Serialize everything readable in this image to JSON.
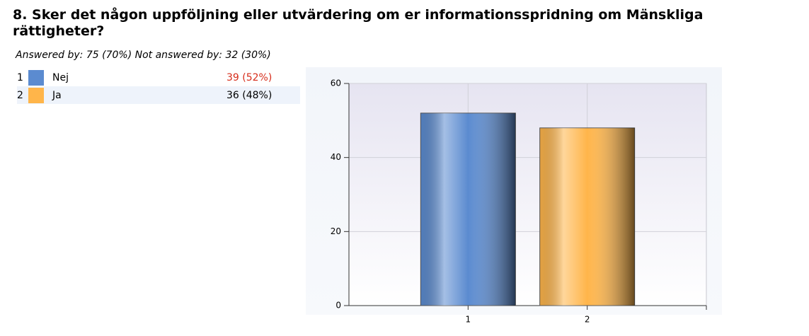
{
  "title": "8. Sker det någon uppföljning eller utvärdering om er informationsspridning om Mänskliga rättigheter?",
  "summary": "Answered by: 75 (70%) Not answered by: 32 (30%)",
  "table": {
    "rows": [
      [
        "1",
        "Nej",
        "39 (52%)"
      ],
      [
        "2",
        "Ja",
        "36 (48%)"
      ]
    ]
  },
  "chart_data": {
    "type": "bar",
    "categories": [
      "1",
      "2"
    ],
    "values": [
      52,
      48
    ],
    "colors": [
      "#5b8bd0",
      "#ffb54a"
    ],
    "ylim": [
      0,
      60
    ],
    "yticks": [
      0,
      20,
      40,
      60
    ],
    "grid": true
  }
}
